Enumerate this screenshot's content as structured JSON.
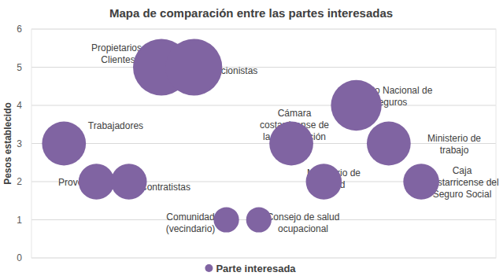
{
  "chart_data": {
    "type": "bubble",
    "title": "Mapa de comparación entre las partes interesadas",
    "ylabel": "Pesos establecido",
    "x": [
      1,
      2,
      3,
      4,
      5,
      6,
      7,
      8,
      9,
      10,
      11,
      12
    ],
    "xlim": [
      0,
      14.3
    ],
    "ylim": [
      0,
      6
    ],
    "yticks": [
      0,
      1,
      2,
      3,
      4,
      5,
      6
    ],
    "grid": true,
    "tick_labels": "y",
    "legend": "bottom",
    "series": [
      {
        "name": "Parte interesada",
        "color": "#8064a2",
        "marker": "circle",
        "values": [
          3,
          2,
          2,
          5,
          5,
          1,
          1,
          3,
          2,
          4,
          3,
          2
        ],
        "sizes": [
          3,
          2,
          2,
          5,
          5,
          1,
          1,
          3,
          2,
          4,
          3,
          2
        ],
        "labels": [
          "Trabajadores",
          "Proveedores",
          "Contratistas",
          "Propietarios-Clientes",
          "Accionistas",
          "Comunidad (vecindario)",
          "Consejo de salud ocupacional",
          "Cámara costarricense de la construcción",
          "Ministerio de salud",
          "Instituto Nacional de Seguros",
          "Ministerio de trabajo",
          "Caja Costarricense del Seguro Social"
        ]
      }
    ]
  }
}
